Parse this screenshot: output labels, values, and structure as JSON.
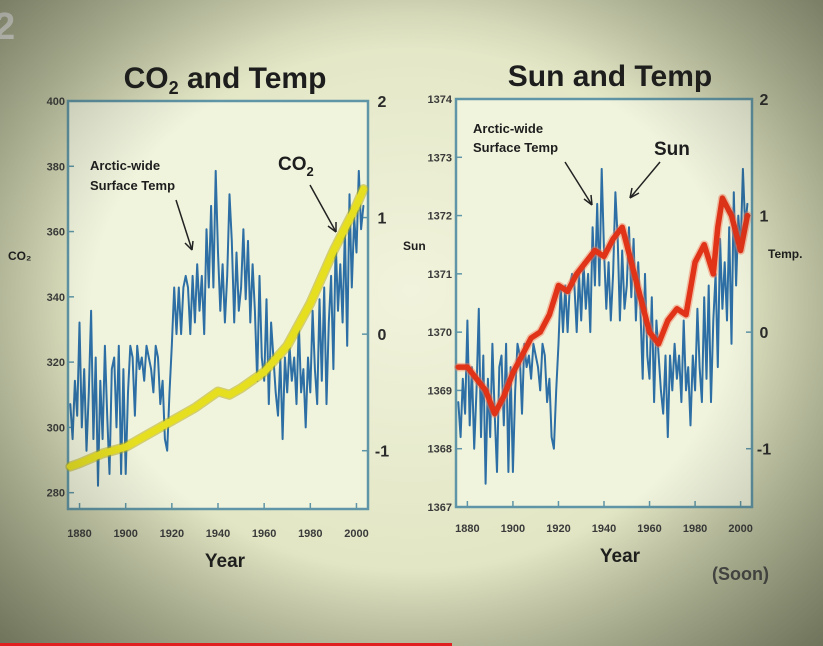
{
  "charts": [
    {
      "title_main": "CO",
      "title_sub": "2",
      "title_rest": " and Temp",
      "left_axis_label": "CO₂",
      "right_axis_label": "",
      "xlabel": "Year",
      "x_ticks": [
        "1880",
        "1900",
        "1920",
        "1940",
        "1960",
        "1980",
        "2000"
      ],
      "left_ticks": [
        "400",
        "380",
        "360",
        "340",
        "320",
        "300",
        "280"
      ],
      "right_ticks": [
        "2",
        "1",
        "0",
        "-1"
      ],
      "annot_temp_line1": "Arctic-wide",
      "annot_temp_line2": "Surface Temp",
      "annot_series_main": "CO",
      "annot_series_sub": "2"
    },
    {
      "title_main": "Sun and Temp",
      "title_sub": "",
      "title_rest": "",
      "left_axis_label": "Sun",
      "right_axis_label": "Temp.",
      "xlabel": "Year",
      "x_ticks": [
        "1880",
        "1900",
        "1920",
        "1940",
        "1960",
        "1980",
        "2000"
      ],
      "left_ticks": [
        "1374",
        "1373",
        "1372",
        "1371",
        "1370",
        "1369",
        "1368",
        "1367"
      ],
      "right_ticks": [
        "2",
        "1",
        "0",
        "-1"
      ],
      "annot_temp_line1": "Arctic-wide",
      "annot_temp_line2": "Surface Temp",
      "annot_series_main": "Sun",
      "annot_series_sub": ""
    }
  ],
  "source": "(Soon)",
  "badge": "2",
  "colors": {
    "temp": "#2d6fa5",
    "co2": "#e6df20",
    "sun": "#e03318",
    "frame": "#5f95a6",
    "plot_bg": "#f1f4dd"
  },
  "chart_data": [
    {
      "type": "line",
      "title": "CO2 and Temp",
      "xlabel": "Year",
      "ylabel_left": "CO2",
      "ylabel_right": "",
      "xlim": [
        1875,
        2005
      ],
      "ylim_left": [
        275,
        400
      ],
      "ylim_right": [
        -1.5,
        2
      ],
      "grid": false,
      "series": [
        {
          "name": "Arctic-wide Surface Temp",
          "axis": "right",
          "x": [
            1876,
            1877,
            1878,
            1879,
            1880,
            1881,
            1882,
            1883,
            1884,
            1885,
            1886,
            1887,
            1888,
            1889,
            1890,
            1891,
            1892,
            1893,
            1894,
            1895,
            1896,
            1897,
            1898,
            1899,
            1900,
            1901,
            1902,
            1903,
            1904,
            1905,
            1906,
            1907,
            1908,
            1909,
            1910,
            1911,
            1912,
            1913,
            1914,
            1915,
            1916,
            1917,
            1918,
            1919,
            1920,
            1921,
            1922,
            1923,
            1924,
            1925,
            1926,
            1927,
            1928,
            1929,
            1930,
            1931,
            1932,
            1933,
            1934,
            1935,
            1936,
            1937,
            1938,
            1939,
            1940,
            1941,
            1942,
            1943,
            1944,
            1945,
            1946,
            1947,
            1948,
            1949,
            1950,
            1951,
            1952,
            1953,
            1954,
            1955,
            1956,
            1957,
            1958,
            1959,
            1960,
            1961,
            1962,
            1963,
            1964,
            1965,
            1966,
            1967,
            1968,
            1969,
            1970,
            1971,
            1972,
            1973,
            1974,
            1975,
            1976,
            1977,
            1978,
            1979,
            1980,
            1981,
            1982,
            1983,
            1984,
            1985,
            1986,
            1987,
            1988,
            1989,
            1990,
            1991,
            1992,
            1993,
            1994,
            1995,
            1996,
            1997,
            1998,
            1999,
            2000,
            2001,
            2002,
            2003
          ],
          "y": [
            -0.6,
            -0.9,
            -0.4,
            -0.7,
            0.1,
            -0.8,
            -0.3,
            -1.0,
            -0.5,
            0.2,
            -0.9,
            -0.2,
            -1.3,
            -0.4,
            -0.9,
            -0.1,
            -0.7,
            -1.2,
            -0.3,
            -0.2,
            -0.8,
            -0.1,
            -1.2,
            -0.3,
            -1.2,
            -0.5,
            -0.1,
            -0.2,
            -0.7,
            -0.1,
            -0.3,
            -0.2,
            -0.4,
            -0.1,
            -0.2,
            -0.3,
            -0.5,
            -0.1,
            -0.2,
            -0.6,
            -0.4,
            -0.9,
            -1.0,
            -0.5,
            -0.1,
            0.4,
            0.0,
            0.4,
            0.0,
            0.4,
            0.5,
            0.4,
            0.0,
            0.5,
            0.1,
            0.6,
            0.2,
            0.5,
            0.0,
            0.9,
            0.4,
            1.1,
            0.4,
            1.4,
            0.7,
            0.2,
            0.6,
            0.1,
            0.5,
            1.2,
            0.8,
            0.1,
            0.7,
            0.2,
            0.4,
            0.9,
            0.3,
            0.8,
            0.1,
            0.6,
            0.2,
            -0.4,
            0.5,
            -0.2,
            -0.4,
            0.3,
            -0.6,
            0.1,
            -0.2,
            -0.5,
            -0.7,
            -0.2,
            -0.9,
            -0.2,
            -0.5,
            -0.1,
            -0.4,
            -0.2,
            -0.6,
            0.1,
            -0.5,
            -0.3,
            -0.8,
            -0.2,
            -0.5,
            0.2,
            -0.3,
            -0.6,
            0.3,
            -0.4,
            0.4,
            -0.6,
            0.1,
            0.5,
            -0.3,
            0.8,
            0.2,
            0.6,
            0.1,
            0.9,
            -0.1,
            1.2,
            0.4,
            1.0,
            0.7,
            1.4,
            0.9,
            1.1
          ]
        },
        {
          "name": "CO2",
          "axis": "left",
          "x": [
            1876,
            1880,
            1890,
            1900,
            1910,
            1920,
            1930,
            1940,
            1945,
            1950,
            1960,
            1970,
            1980,
            1990,
            2000,
            2003
          ],
          "y": [
            288,
            289,
            292,
            294,
            298,
            302,
            306,
            311,
            310,
            312,
            317,
            325,
            338,
            354,
            368,
            373
          ]
        }
      ]
    },
    {
      "type": "line",
      "title": "Sun and Temp",
      "xlabel": "Year",
      "ylabel_left": "Sun",
      "ylabel_right": "Temp.",
      "xlim": [
        1875,
        2005
      ],
      "ylim_left": [
        1367,
        1374
      ],
      "ylim_right": [
        -1.5,
        2
      ],
      "grid": false,
      "series": [
        {
          "name": "Arctic-wide Surface Temp",
          "axis": "right",
          "x": [
            1876,
            1877,
            1878,
            1879,
            1880,
            1881,
            1882,
            1883,
            1884,
            1885,
            1886,
            1887,
            1888,
            1889,
            1890,
            1891,
            1892,
            1893,
            1894,
            1895,
            1896,
            1897,
            1898,
            1899,
            1900,
            1901,
            1902,
            1903,
            1904,
            1905,
            1906,
            1907,
            1908,
            1909,
            1910,
            1911,
            1912,
            1913,
            1914,
            1915,
            1916,
            1917,
            1918,
            1919,
            1920,
            1921,
            1922,
            1923,
            1924,
            1925,
            1926,
            1927,
            1928,
            1929,
            1930,
            1931,
            1932,
            1933,
            1934,
            1935,
            1936,
            1937,
            1938,
            1939,
            1940,
            1941,
            1942,
            1943,
            1944,
            1945,
            1946,
            1947,
            1948,
            1949,
            1950,
            1951,
            1952,
            1953,
            1954,
            1955,
            1956,
            1957,
            1958,
            1959,
            1960,
            1961,
            1962,
            1963,
            1964,
            1965,
            1966,
            1967,
            1968,
            1969,
            1970,
            1971,
            1972,
            1973,
            1974,
            1975,
            1976,
            1977,
            1978,
            1979,
            1980,
            1981,
            1982,
            1983,
            1984,
            1985,
            1986,
            1987,
            1988,
            1989,
            1990,
            1991,
            1992,
            1993,
            1994,
            1995,
            1996,
            1997,
            1998,
            1999,
            2000,
            2001,
            2002,
            2003
          ],
          "y": [
            -0.6,
            -0.9,
            -0.4,
            -0.7,
            0.1,
            -0.8,
            -0.3,
            -1.0,
            -0.5,
            0.2,
            -0.9,
            -0.2,
            -1.3,
            -0.4,
            -0.9,
            -0.1,
            -0.7,
            -1.2,
            -0.3,
            -0.2,
            -0.8,
            -0.1,
            -1.2,
            -0.3,
            -1.2,
            -0.5,
            -0.1,
            -0.2,
            -0.7,
            -0.1,
            -0.3,
            -0.2,
            -0.4,
            -0.1,
            -0.2,
            -0.3,
            -0.5,
            -0.1,
            -0.2,
            -0.6,
            -0.4,
            -0.9,
            -1.0,
            -0.5,
            -0.1,
            0.4,
            0.0,
            0.4,
            0.0,
            0.4,
            0.5,
            0.4,
            0.0,
            0.5,
            0.1,
            0.6,
            0.2,
            0.5,
            0.0,
            0.9,
            0.4,
            1.1,
            0.4,
            1.4,
            0.7,
            0.2,
            0.6,
            0.1,
            0.5,
            1.2,
            0.8,
            0.1,
            0.7,
            0.2,
            0.4,
            0.9,
            0.3,
            0.8,
            0.1,
            0.6,
            0.2,
            -0.4,
            0.5,
            -0.2,
            -0.4,
            0.3,
            -0.6,
            0.1,
            -0.2,
            -0.5,
            -0.7,
            -0.2,
            -0.9,
            -0.2,
            -0.5,
            -0.1,
            -0.4,
            -0.2,
            -0.6,
            0.1,
            -0.5,
            -0.3,
            -0.8,
            -0.2,
            -0.5,
            0.2,
            -0.3,
            -0.6,
            0.3,
            -0.4,
            0.4,
            -0.6,
            0.1,
            0.5,
            -0.3,
            0.8,
            0.2,
            0.6,
            0.1,
            0.9,
            -0.1,
            1.2,
            0.4,
            1.0,
            0.7,
            1.4,
            0.9,
            1.1
          ]
        },
        {
          "name": "Sun",
          "axis": "left",
          "x": [
            1876,
            1880,
            1884,
            1888,
            1892,
            1896,
            1900,
            1904,
            1908,
            1912,
            1916,
            1920,
            1924,
            1928,
            1932,
            1936,
            1940,
            1944,
            1948,
            1950,
            1952,
            1956,
            1960,
            1964,
            1968,
            1972,
            1976,
            1980,
            1984,
            1988,
            1990,
            1992,
            1996,
            2000,
            2003
          ],
          "y": [
            1369.4,
            1369.4,
            1369.2,
            1369.0,
            1368.6,
            1368.9,
            1369.3,
            1369.6,
            1369.9,
            1370.0,
            1370.3,
            1370.8,
            1370.7,
            1371.0,
            1371.2,
            1371.4,
            1371.3,
            1371.6,
            1371.8,
            1371.5,
            1371.2,
            1370.6,
            1370.0,
            1369.8,
            1370.2,
            1370.4,
            1370.3,
            1371.2,
            1371.5,
            1371.0,
            1371.8,
            1372.3,
            1372.0,
            1371.4,
            1372.0
          ]
        }
      ]
    }
  ]
}
